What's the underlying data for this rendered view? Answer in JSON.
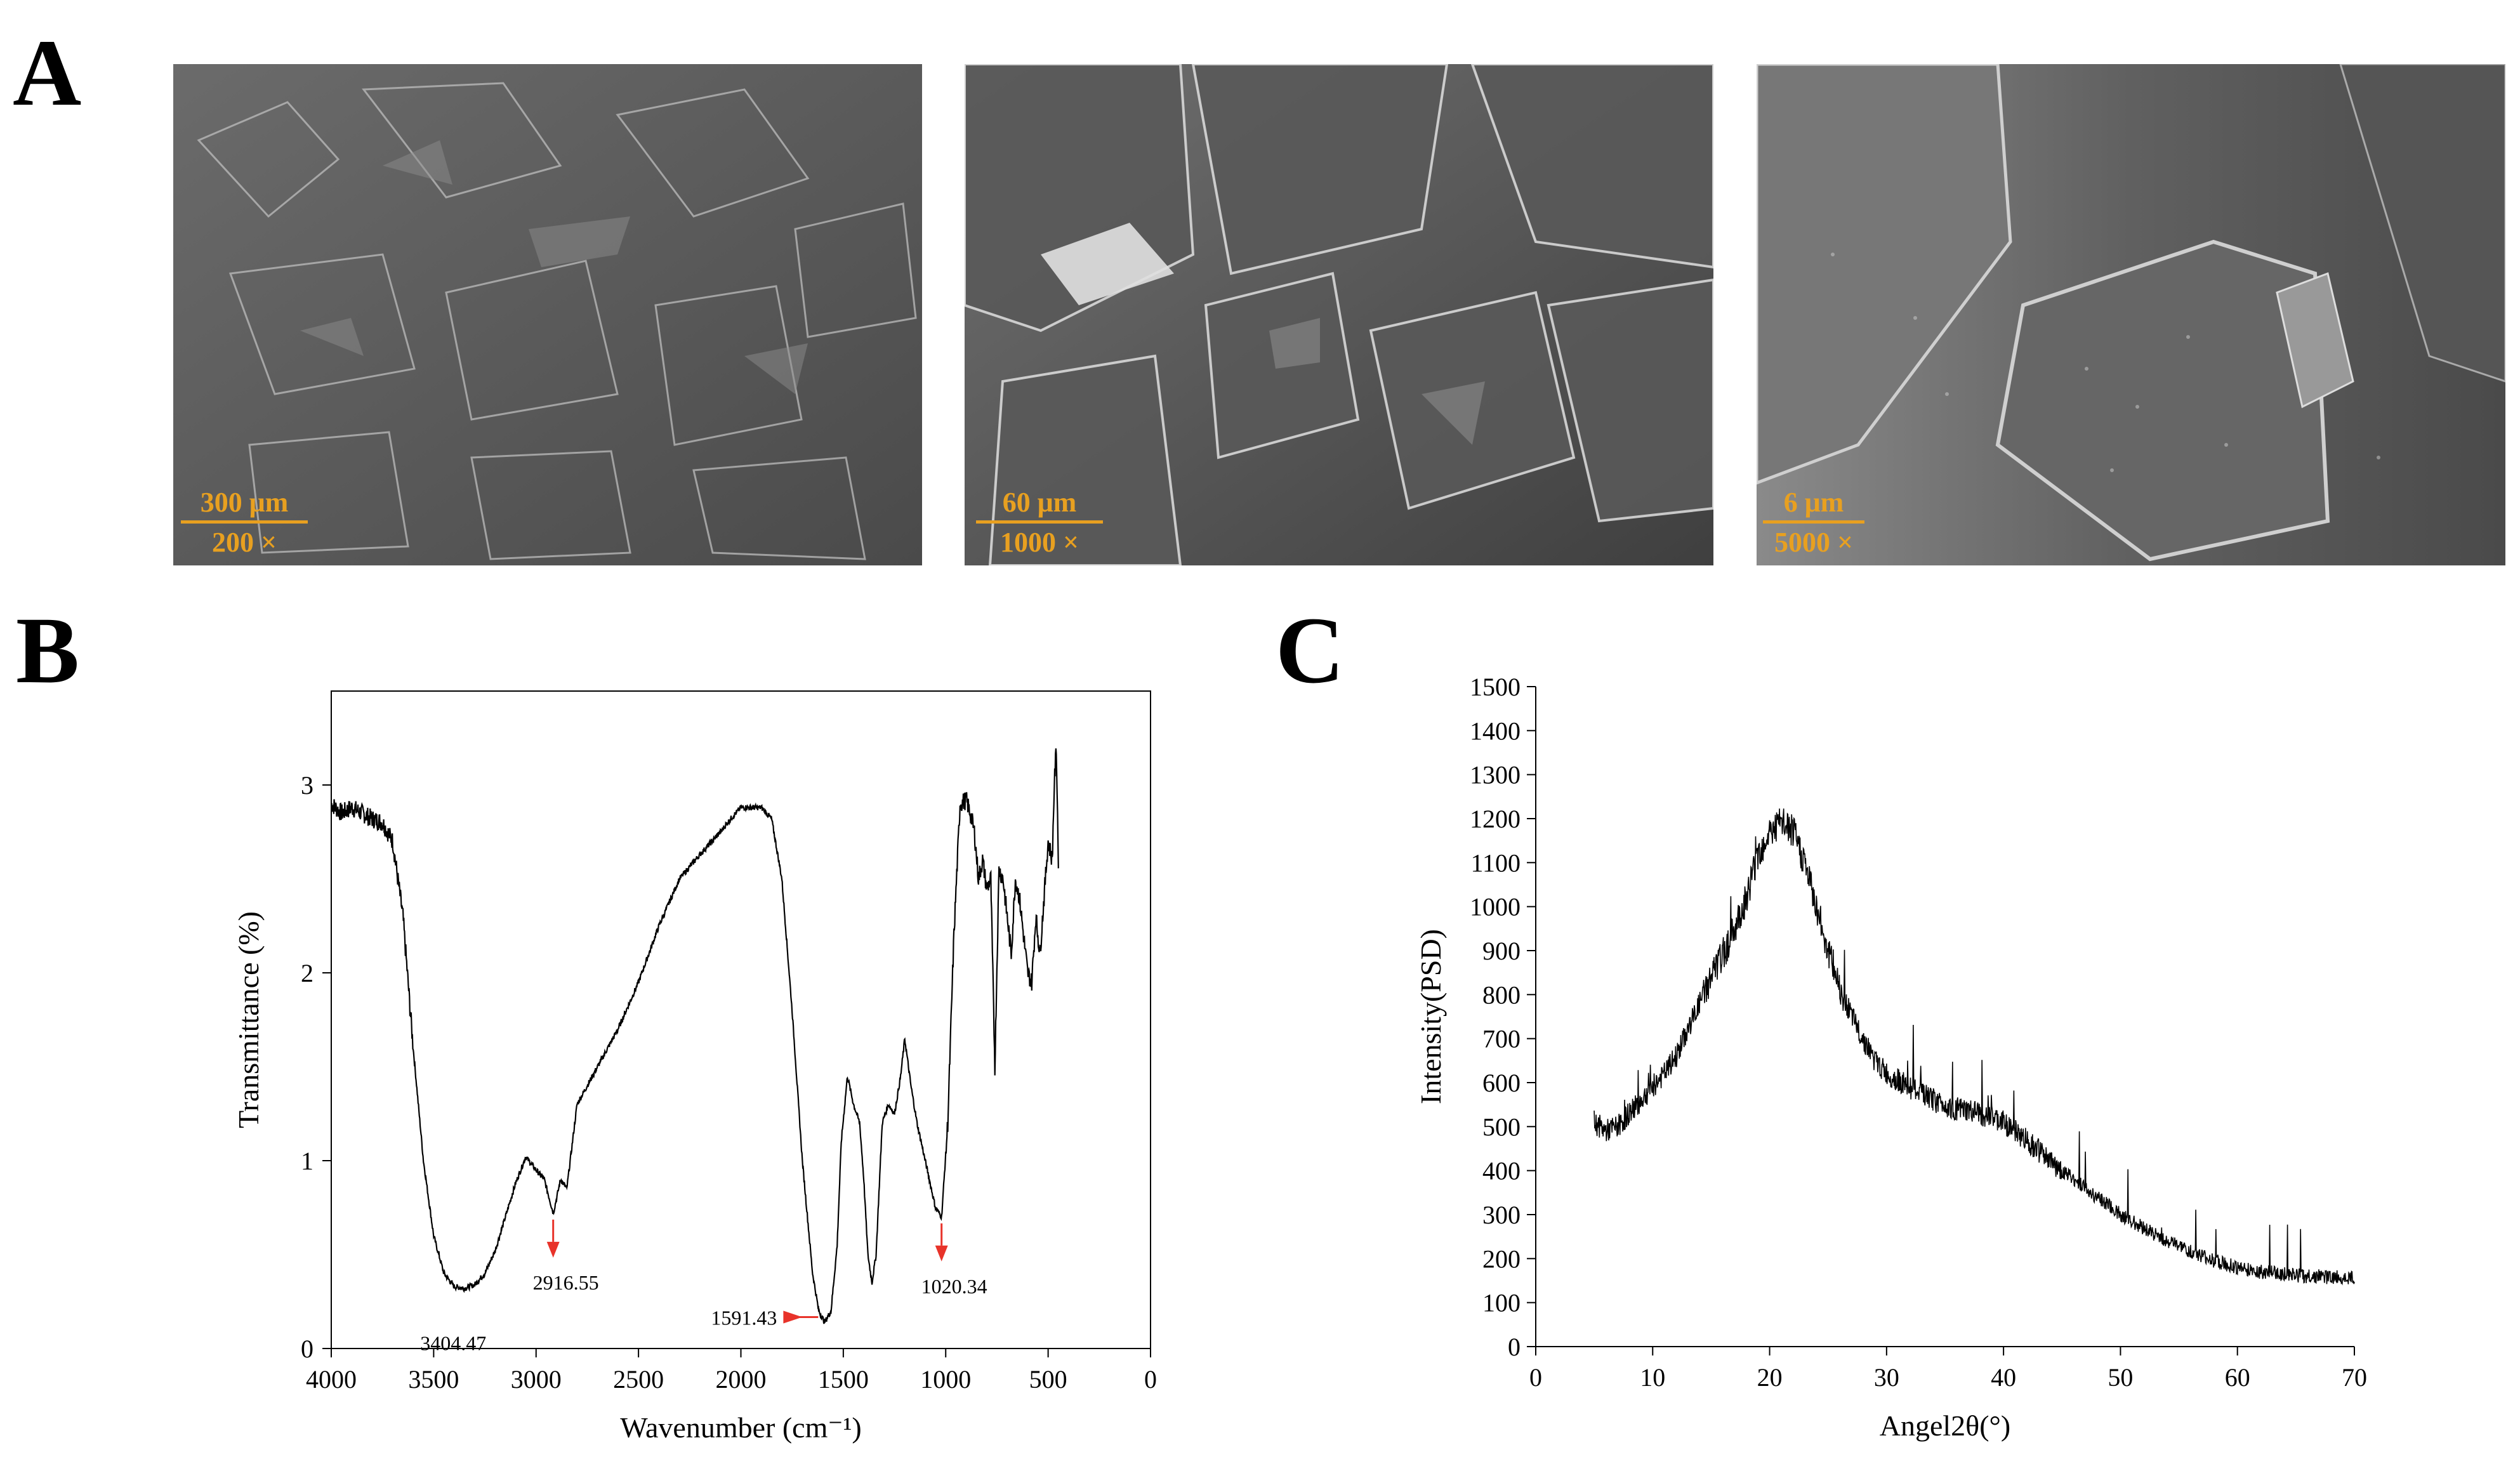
{
  "panels": {
    "a": "A",
    "b": "B",
    "c": "C"
  },
  "sem_images": [
    {
      "scale_label": "300 μm",
      "magnification": "200 ×"
    },
    {
      "scale_label": "60 μm",
      "magnification": "1000 ×"
    },
    {
      "scale_label": "6 μm",
      "magnification": "5000 ×"
    }
  ],
  "colors": {
    "scale_text": "#e8a020",
    "annotation_arrow": "#e8332a",
    "line": "#000000"
  },
  "chart_data": [
    {
      "type": "line",
      "title": "",
      "xlabel": "Wavenumber (cm⁻¹)",
      "ylabel": "Transmittance (%)",
      "xlim": [
        4000,
        0
      ],
      "ylim": [
        0,
        3.5
      ],
      "x_ticks": [
        "4000",
        "3500",
        "3000",
        "2500",
        "2000",
        "1500",
        "1000",
        "500",
        "0"
      ],
      "y_ticks": [
        "0",
        "1",
        "2",
        "3"
      ],
      "series": [
        {
          "x": [
            4000,
            3950,
            3900,
            3850,
            3800,
            3750,
            3700,
            3650,
            3600,
            3550,
            3500,
            3450,
            3400,
            3350,
            3300,
            3250,
            3200,
            3150,
            3100,
            3050,
            3000,
            2960,
            2916,
            2880,
            2850,
            2800,
            2750,
            2700,
            2600,
            2500,
            2400,
            2300,
            2200,
            2100,
            2050,
            2000,
            1950,
            1900,
            1850,
            1800,
            1750,
            1700,
            1650,
            1620,
            1591,
            1560,
            1530,
            1510,
            1480,
            1450,
            1420,
            1400,
            1380,
            1360,
            1340,
            1310,
            1280,
            1250,
            1220,
            1200,
            1170,
            1140,
            1110,
            1080,
            1050,
            1020,
            990,
            960,
            930,
            900,
            880,
            860,
            840,
            820,
            800,
            780,
            760,
            740,
            720,
            700,
            680,
            660,
            640,
            620,
            600,
            580,
            560,
            540,
            520,
            500,
            480,
            470,
            460,
            450
          ],
          "y": [
            2.9,
            2.85,
            2.88,
            2.85,
            2.82,
            2.8,
            2.7,
            2.3,
            1.6,
            1.0,
            0.6,
            0.4,
            0.33,
            0.32,
            0.34,
            0.4,
            0.52,
            0.7,
            0.88,
            1.02,
            0.95,
            0.9,
            0.72,
            0.9,
            0.85,
            1.3,
            1.4,
            1.5,
            1.7,
            1.95,
            2.25,
            2.5,
            2.63,
            2.75,
            2.82,
            2.88,
            2.88,
            2.88,
            2.82,
            2.5,
            1.8,
            1.0,
            0.4,
            0.2,
            0.14,
            0.2,
            0.55,
            1.1,
            1.45,
            1.3,
            1.2,
            0.9,
            0.5,
            0.35,
            0.5,
            1.2,
            1.3,
            1.25,
            1.45,
            1.65,
            1.4,
            1.2,
            1.05,
            0.9,
            0.75,
            0.7,
            1.2,
            2.2,
            2.9,
            2.92,
            2.85,
            2.75,
            2.5,
            2.6,
            2.45,
            2.5,
            1.5,
            2.55,
            2.5,
            2.3,
            2.1,
            2.5,
            2.4,
            2.2,
            2.0,
            1.95,
            2.3,
            2.1,
            2.4,
            2.7,
            2.6,
            3.0,
            3.2,
            2.6
          ]
        }
      ],
      "annotations": [
        {
          "label": "3404.47",
          "x": 3404.47,
          "y": 0.33
        },
        {
          "label": "2916.55",
          "x": 2916.55,
          "y": 0.72,
          "arrow": true
        },
        {
          "label": "1591.43",
          "x": 1591.43,
          "y": 0.14,
          "arrow": true
        },
        {
          "label": "1020.34",
          "x": 1020.34,
          "y": 0.7,
          "arrow": true
        }
      ],
      "grid": false
    },
    {
      "type": "line",
      "title": "",
      "xlabel": "Angel2θ(°)",
      "ylabel": "Intensity(PSD)",
      "xlim": [
        0,
        70
      ],
      "ylim": [
        0,
        1500
      ],
      "x_ticks": [
        "0",
        "10",
        "20",
        "30",
        "40",
        "50",
        "60",
        "70"
      ],
      "y_ticks": [
        "0",
        "100",
        "200",
        "300",
        "400",
        "500",
        "600",
        "700",
        "800",
        "900",
        "1000",
        "1100",
        "1200",
        "1300",
        "1400",
        "1500"
      ],
      "series": [
        {
          "x": [
            5,
            6,
            7,
            8,
            9,
            10,
            11,
            12,
            13,
            14,
            15,
            16,
            17,
            18,
            19,
            20,
            21,
            22,
            23,
            24,
            25,
            26,
            27,
            28,
            29,
            30,
            32,
            34,
            36,
            38,
            40,
            42,
            44,
            46,
            48,
            50,
            52,
            54,
            56,
            58,
            60,
            62,
            64,
            66,
            68,
            70
          ],
          "y": [
            510,
            490,
            500,
            530,
            560,
            590,
            620,
            660,
            720,
            780,
            840,
            890,
            950,
            1020,
            1120,
            1170,
            1190,
            1170,
            1100,
            1000,
            900,
            820,
            750,
            700,
            650,
            620,
            590,
            560,
            540,
            530,
            510,
            470,
            420,
            380,
            340,
            300,
            270,
            240,
            215,
            195,
            180,
            170,
            165,
            160,
            158,
            155
          ],
          "noise": 60
        }
      ],
      "grid": false
    }
  ]
}
